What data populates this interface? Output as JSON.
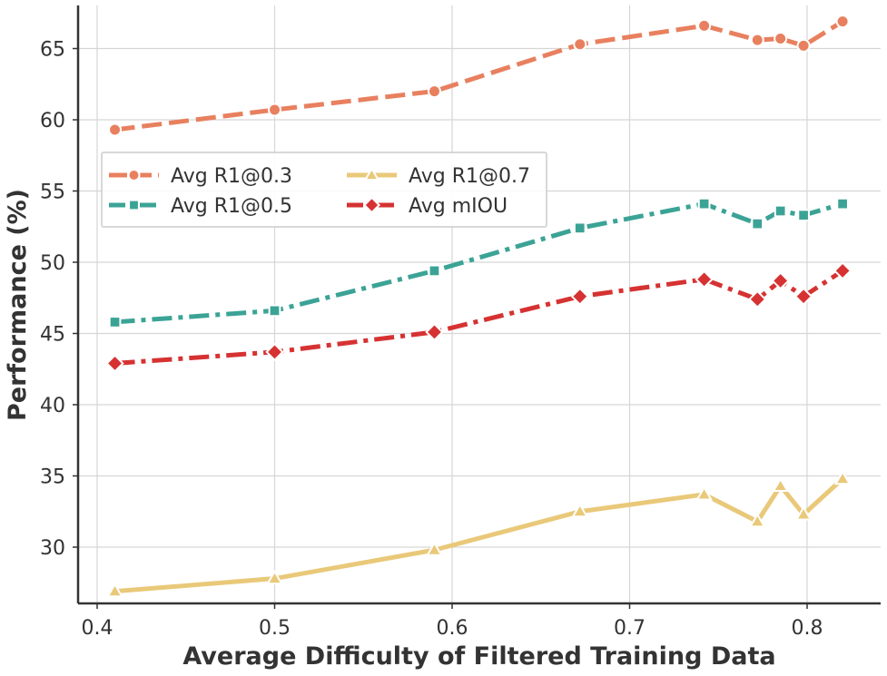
{
  "chart_data": {
    "type": "line",
    "title": "",
    "xlabel": "Average Difficulty of Filtered Training Data",
    "ylabel": "Performance (%)",
    "xlim": [
      0.39,
      0.83
    ],
    "ylim": [
      26,
      68
    ],
    "xticks": [
      "0.4",
      "0.5",
      "0.6",
      "0.7",
      "0.8"
    ],
    "xtick_values": [
      0.4,
      0.5,
      0.6,
      0.7,
      0.8
    ],
    "yticks": [
      "30",
      "35",
      "40",
      "45",
      "50",
      "55",
      "60",
      "65"
    ],
    "ytick_values": [
      30,
      35,
      40,
      45,
      50,
      55,
      60,
      65
    ],
    "grid": true,
    "legend_position": "upper-left",
    "x": [
      0.41,
      0.5,
      0.59,
      0.672,
      0.742,
      0.772,
      0.785,
      0.798,
      0.82
    ],
    "series": [
      {
        "name": "Avg R1@0.3",
        "marker": "circle",
        "line_style": "dashed",
        "color": "#E8805F",
        "values": [
          59.3,
          60.7,
          62.0,
          65.3,
          66.6,
          65.6,
          65.7,
          65.2,
          66.9
        ]
      },
      {
        "name": "Avg R1@0.5",
        "marker": "square",
        "line_style": "dash-dot",
        "color": "#3BA396",
        "values": [
          45.8,
          46.6,
          49.4,
          52.4,
          54.1,
          52.7,
          53.6,
          53.3,
          54.1
        ]
      },
      {
        "name": "Avg R1@0.7",
        "marker": "triangle",
        "line_style": "solid",
        "color": "#E9C979",
        "values": [
          26.9,
          27.8,
          29.8,
          32.5,
          33.7,
          31.8,
          34.3,
          32.3,
          34.8
        ]
      },
      {
        "name": "Avg mIOU",
        "marker": "diamond",
        "line_style": "dash-dot",
        "color": "#D63232",
        "values": [
          42.9,
          43.7,
          45.1,
          47.6,
          48.8,
          47.4,
          48.7,
          47.6,
          49.4
        ]
      }
    ]
  }
}
